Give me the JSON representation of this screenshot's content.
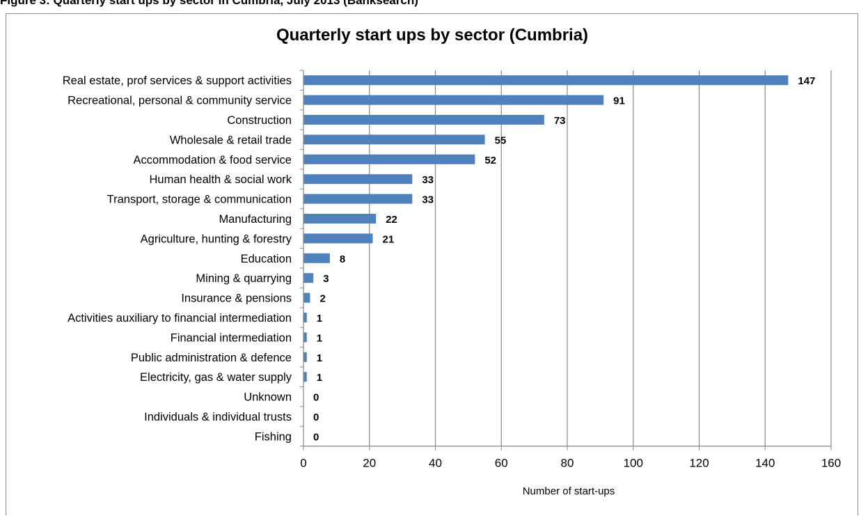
{
  "caption": "Figure 3: Quarterly start ups by sector in Cumbria, July 2013 (Banksearch)",
  "chart_data": {
    "type": "bar",
    "orientation": "horizontal",
    "title": "Quarterly start ups by sector (Cumbria)",
    "xlabel": "Number of start-ups",
    "ylabel": "",
    "xlim": [
      0,
      160
    ],
    "xticks": [
      0,
      20,
      40,
      60,
      80,
      100,
      120,
      140,
      160
    ],
    "grid": true,
    "categories": [
      "Real estate, prof services & support activities",
      "Recreational, personal & community service",
      "Construction",
      "Wholesale & retail trade",
      "Accommodation & food service",
      "Human health & social work",
      "Transport, storage & communication",
      "Manufacturing",
      "Agriculture, hunting & forestry",
      "Education",
      "Mining & quarrying",
      "Insurance & pensions",
      "Activities auxiliary to financial intermediation",
      "Financial intermediation",
      "Public administration & defence",
      "Electricity, gas & water supply",
      "Unknown",
      "Individuals & individual trusts",
      "Fishing"
    ],
    "values": [
      147,
      91,
      73,
      55,
      52,
      33,
      33,
      22,
      21,
      8,
      3,
      2,
      1,
      1,
      1,
      1,
      0,
      0,
      0
    ],
    "bar_color": "#4f81bd"
  }
}
